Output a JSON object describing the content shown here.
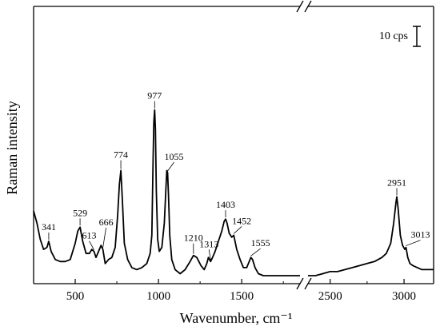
{
  "chart_data": {
    "type": "line",
    "xlabel": "Wavenumber, cm⁻¹",
    "ylabel": "Raman intensity",
    "scale_bar_label": "10 cps",
    "xlim_left": [
      250,
      1850
    ],
    "xlim_right": [
      2350,
      3200
    ],
    "axis_break": "between 1850 and 2350 cm⁻¹",
    "ylim": [
      0,
      100
    ],
    "x_ticks": [
      500,
      1000,
      1500,
      2500,
      3000
    ],
    "x_tick_labels": [
      "500",
      "1000",
      "1500",
      "2500",
      "3000"
    ],
    "grid": false,
    "series": [
      {
        "segment": "left",
        "x": [
          250,
          270,
          290,
          310,
          330,
          341,
          355,
          380,
          410,
          440,
          470,
          500,
          515,
          529,
          545,
          565,
          585,
          600,
          613,
          625,
          640,
          655,
          666,
          680,
          700,
          720,
          740,
          755,
          765,
          774,
          783,
          795,
          815,
          840,
          870,
          900,
          930,
          950,
          960,
          968,
          972,
          977,
          982,
          987,
          995,
          1005,
          1020,
          1035,
          1045,
          1050,
          1055,
          1060,
          1068,
          1080,
          1100,
          1130,
          1160,
          1190,
          1210,
          1230,
          1255,
          1275,
          1290,
          1300,
          1313,
          1325,
          1340,
          1360,
          1380,
          1395,
          1403,
          1412,
          1425,
          1440,
          1452,
          1470,
          1490,
          1510,
          1530,
          1545,
          1555,
          1565,
          1580,
          1600,
          1630,
          1680,
          1730,
          1780,
          1820,
          1850
        ],
        "y": [
          32,
          26,
          18,
          13,
          14,
          17,
          12,
          8,
          7,
          7,
          8,
          16,
          22,
          24,
          17,
          11,
          11,
          13,
          12,
          9,
          12,
          15,
          13,
          6,
          8,
          9,
          14,
          30,
          45,
          52,
          38,
          16,
          8,
          4,
          3,
          4,
          6,
          11,
          20,
          58,
          76,
          82,
          72,
          42,
          18,
          12,
          14,
          26,
          44,
          52,
          51,
          40,
          20,
          8,
          3,
          1,
          3,
          7,
          10,
          9,
          5,
          3,
          6,
          9,
          7,
          9,
          12,
          17,
          22,
          27,
          28,
          26,
          21,
          19,
          20,
          13,
          8,
          4,
          4,
          7,
          9,
          8,
          4,
          1,
          0,
          0,
          0,
          0,
          0,
          0
        ]
      },
      {
        "segment": "right",
        "x": [
          2350,
          2400,
          2450,
          2500,
          2550,
          2600,
          2650,
          2700,
          2750,
          2800,
          2850,
          2880,
          2910,
          2930,
          2945,
          2951,
          2960,
          2975,
          2990,
          3005,
          3013,
          3025,
          3040,
          3060,
          3090,
          3120,
          3160,
          3200
        ],
        "y": [
          0,
          0,
          1,
          2,
          2,
          3,
          4,
          5,
          6,
          7,
          9,
          11,
          16,
          26,
          36,
          39,
          33,
          20,
          15,
          13,
          14,
          9,
          6,
          5,
          4,
          3,
          3,
          3
        ]
      }
    ],
    "peaks": [
      {
        "x": 341,
        "label": "341"
      },
      {
        "x": 529,
        "label": "529"
      },
      {
        "x": 613,
        "label": "613"
      },
      {
        "x": 666,
        "label": "666"
      },
      {
        "x": 774,
        "label": "774"
      },
      {
        "x": 977,
        "label": "977"
      },
      {
        "x": 1055,
        "label": "1055"
      },
      {
        "x": 1210,
        "label": "1210"
      },
      {
        "x": 1313,
        "label": "1313"
      },
      {
        "x": 1403,
        "label": "1403"
      },
      {
        "x": 1452,
        "label": "1452"
      },
      {
        "x": 1555,
        "label": "1555"
      },
      {
        "x": 2951,
        "label": "2951"
      },
      {
        "x": 3013,
        "label": "3013"
      }
    ]
  }
}
